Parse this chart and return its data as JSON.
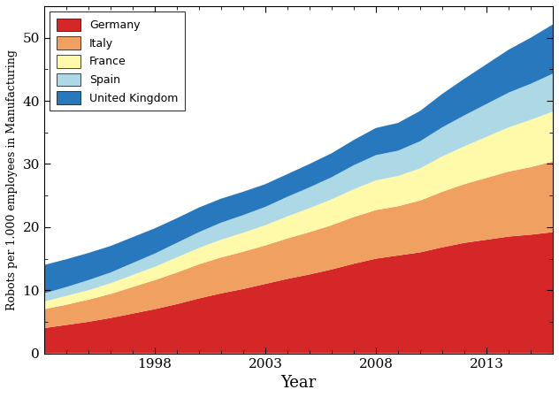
{
  "years": [
    1993,
    1994,
    1995,
    1996,
    1997,
    1998,
    1999,
    2000,
    2001,
    2002,
    2003,
    2004,
    2005,
    2006,
    2007,
    2008,
    2009,
    2010,
    2011,
    2012,
    2013,
    2014,
    2015,
    2016
  ],
  "germany": [
    4.0,
    4.5,
    5.0,
    5.6,
    6.3,
    7.0,
    7.8,
    8.7,
    9.5,
    10.2,
    11.0,
    11.8,
    12.5,
    13.3,
    14.2,
    15.0,
    15.5,
    16.0,
    16.8,
    17.5,
    18.0,
    18.5,
    18.8,
    19.2
  ],
  "italy": [
    3.0,
    3.2,
    3.5,
    3.8,
    4.2,
    4.6,
    5.0,
    5.4,
    5.7,
    5.9,
    6.1,
    6.4,
    6.7,
    7.0,
    7.4,
    7.7,
    7.8,
    8.2,
    8.8,
    9.3,
    9.8,
    10.3,
    10.7,
    11.2
  ],
  "france": [
    1.2,
    1.4,
    1.5,
    1.7,
    1.9,
    2.1,
    2.4,
    2.6,
    2.8,
    3.0,
    3.2,
    3.5,
    3.8,
    4.1,
    4.4,
    4.7,
    4.8,
    5.1,
    5.6,
    6.0,
    6.5,
    7.0,
    7.5,
    7.9
  ],
  "spain": [
    1.3,
    1.4,
    1.6,
    1.7,
    1.9,
    2.1,
    2.3,
    2.5,
    2.7,
    2.8,
    2.9,
    3.1,
    3.3,
    3.5,
    3.8,
    4.0,
    4.0,
    4.3,
    4.6,
    4.9,
    5.2,
    5.5,
    5.7,
    6.0
  ],
  "uk": [
    4.5,
    4.4,
    4.3,
    4.2,
    4.1,
    4.0,
    3.9,
    3.9,
    3.8,
    3.7,
    3.6,
    3.6,
    3.7,
    3.8,
    4.0,
    4.3,
    4.4,
    4.8,
    5.3,
    5.8,
    6.3,
    6.8,
    7.3,
    7.8
  ],
  "colors": {
    "germany": "#D62728",
    "italy": "#F0A060",
    "france": "#FFFAAA",
    "spain": "#ADD8E6",
    "uk": "#2878BE"
  },
  "labels": [
    "Germany",
    "Italy",
    "France",
    "Spain",
    "United Kingdom"
  ],
  "xlabel": "Year",
  "ylabel": "Robots per 1.000 employees in Manufacturing",
  "xlim": [
    1993,
    2016
  ],
  "ylim": [
    0,
    55
  ],
  "yticks": [
    0,
    10,
    20,
    30,
    40,
    50
  ],
  "xticks": [
    1998,
    2003,
    2008,
    2013
  ]
}
